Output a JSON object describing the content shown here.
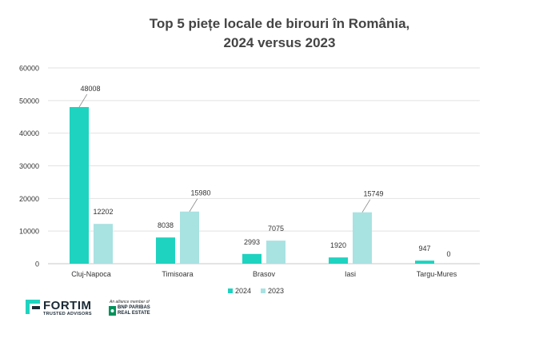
{
  "title_line1": "Top 5 piețe locale de birouri în România,",
  "title_line2": "2024 versus 2023",
  "chart_data": {
    "type": "bar",
    "title": "Top 5 piețe locale de birouri în România, 2024 versus 2023",
    "categories": [
      "Cluj-Napoca",
      "Timisoara",
      "Brasov",
      "Iasi",
      "Targu-Mures"
    ],
    "series": [
      {
        "name": "2024",
        "color": "#1ed3c0",
        "values": [
          48008,
          8038,
          2993,
          1920,
          947
        ]
      },
      {
        "name": "2023",
        "color": "#a8e2e1",
        "values": [
          12202,
          15980,
          7075,
          15749,
          0
        ]
      }
    ],
    "ylim": [
      0,
      60000
    ],
    "yticks": [
      "0",
      "10000",
      "20000",
      "30000",
      "40000",
      "50000",
      "60000"
    ],
    "grid": true,
    "legend": "bottom"
  },
  "footer": {
    "logo_name": "FORTIM",
    "logo_sub": "TRUSTED ADVISORS",
    "alliance_text": "An alliance member of",
    "partner_line1": "BNP PARIBAS",
    "partner_line2": "REAL ESTATE",
    "brand_color": "#1ed3c0",
    "partner_color": "#00915a"
  }
}
